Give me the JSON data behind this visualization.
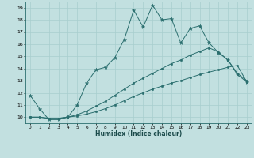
{
  "xlabel": "Humidex (Indice chaleur)",
  "bg_color": "#c2e0e0",
  "grid_color": "#a8cece",
  "line_color": "#2a6e6e",
  "xlim": [
    -0.5,
    23.5
  ],
  "ylim": [
    9.5,
    19.5
  ],
  "xticks": [
    0,
    1,
    2,
    3,
    4,
    5,
    6,
    7,
    8,
    9,
    10,
    11,
    12,
    13,
    14,
    15,
    16,
    17,
    18,
    19,
    20,
    21,
    22,
    23
  ],
  "yticks": [
    10,
    11,
    12,
    13,
    14,
    15,
    16,
    17,
    18,
    19
  ],
  "line1_x": [
    0,
    1,
    2,
    3,
    4,
    5,
    6,
    7,
    8,
    9,
    10,
    11,
    12,
    13,
    14,
    15,
    16,
    17,
    18,
    19,
    20,
    21,
    22,
    23
  ],
  "line1_y": [
    11.8,
    10.7,
    9.8,
    9.8,
    10.0,
    11.0,
    12.8,
    13.9,
    14.1,
    14.9,
    16.4,
    18.8,
    17.4,
    19.2,
    18.0,
    18.1,
    16.1,
    17.3,
    17.5,
    16.1,
    15.3,
    14.7,
    13.5,
    12.9
  ],
  "line2_x": [
    0,
    1,
    2,
    3,
    4,
    5,
    6,
    7,
    8,
    9,
    10,
    11,
    12,
    13,
    14,
    15,
    16,
    17,
    18,
    19,
    20,
    21,
    22,
    23
  ],
  "line2_y": [
    10.0,
    10.0,
    9.9,
    9.9,
    10.0,
    10.1,
    10.25,
    10.45,
    10.7,
    11.0,
    11.35,
    11.7,
    12.0,
    12.3,
    12.55,
    12.8,
    13.0,
    13.25,
    13.5,
    13.7,
    13.9,
    14.1,
    14.25,
    12.9
  ],
  "line3_x": [
    0,
    1,
    2,
    3,
    4,
    5,
    6,
    7,
    8,
    9,
    10,
    11,
    12,
    13,
    14,
    15,
    16,
    17,
    18,
    19,
    20,
    21,
    22,
    23
  ],
  "line3_y": [
    10.0,
    10.0,
    9.9,
    9.9,
    10.0,
    10.2,
    10.5,
    10.9,
    11.3,
    11.8,
    12.3,
    12.8,
    13.2,
    13.6,
    14.0,
    14.4,
    14.7,
    15.1,
    15.4,
    15.7,
    15.35,
    14.7,
    13.6,
    13.0
  ]
}
